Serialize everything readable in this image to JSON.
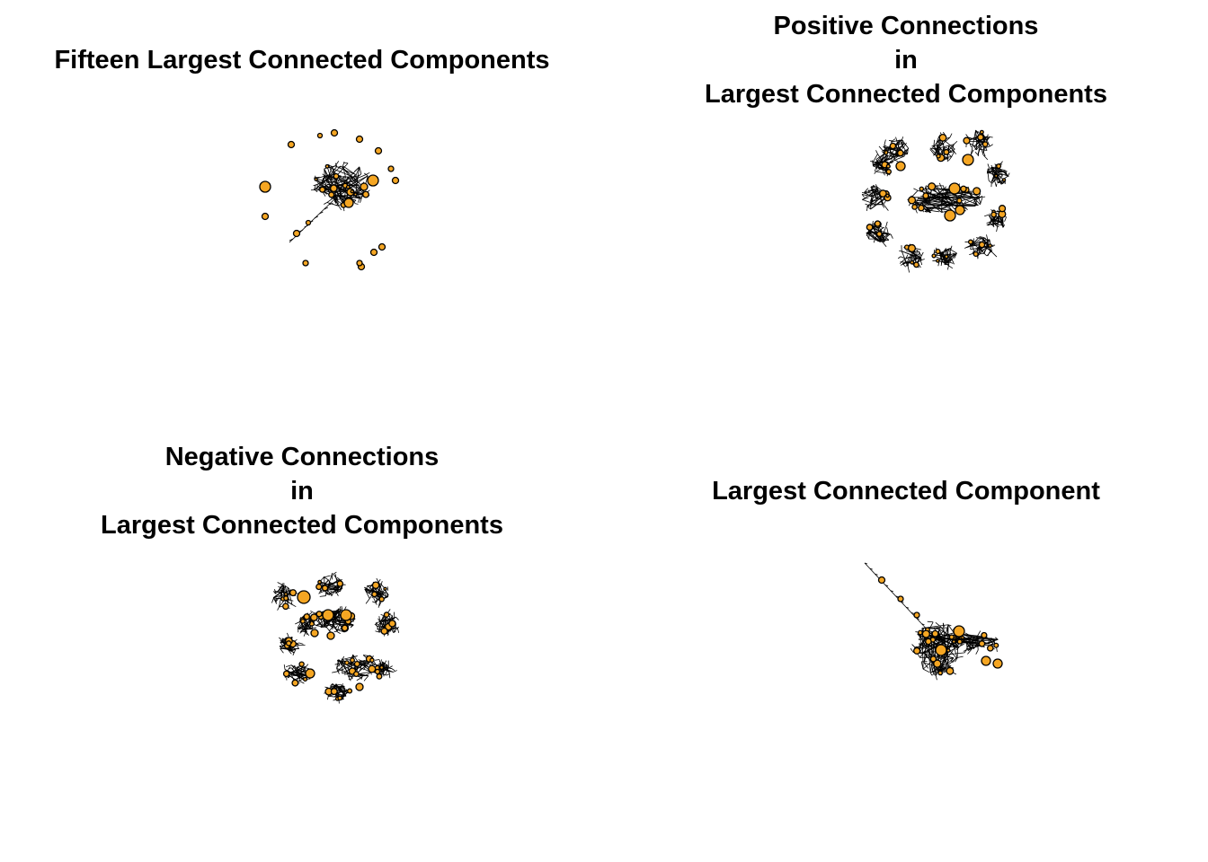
{
  "colors": {
    "node_fill": "#F5A623",
    "node_stroke": "#000000",
    "edge": "#000000",
    "background": "#FFFFFF"
  },
  "panels": [
    {
      "id": "fifteen-largest",
      "title_lines": [
        "Fifteen Largest Connected Components"
      ]
    },
    {
      "id": "positive-connections",
      "title_lines": [
        "Positive Connections",
        "in",
        "Largest Connected Components"
      ]
    },
    {
      "id": "negative-connections",
      "title_lines": [
        "Negative Connections",
        "in",
        "Largest Connected Components"
      ]
    },
    {
      "id": "largest-component",
      "title_lines": [
        "Largest Connected Component"
      ]
    }
  ]
}
